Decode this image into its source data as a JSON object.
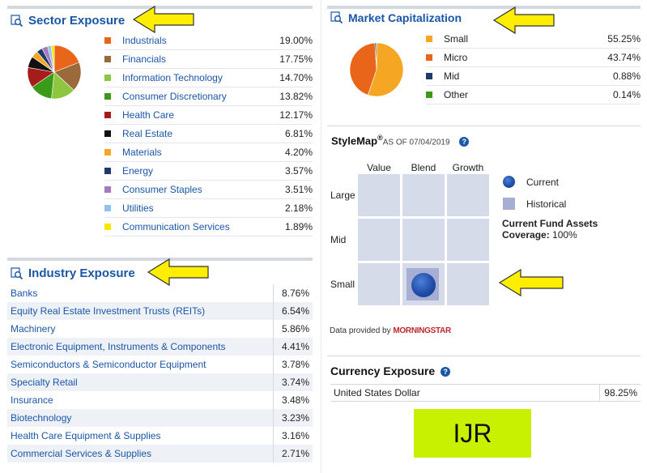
{
  "sector": {
    "title": "Sector Exposure",
    "items": [
      {
        "label": "Industrials",
        "value": "19.00%",
        "color": "#e8651a"
      },
      {
        "label": "Financials",
        "value": "17.75%",
        "color": "#9b6a3a"
      },
      {
        "label": "Information Technology",
        "value": "14.70%",
        "color": "#8dc63f"
      },
      {
        "label": "Consumer Discretionary",
        "value": "13.82%",
        "color": "#3b9a1a"
      },
      {
        "label": "Health Care",
        "value": "12.17%",
        "color": "#a61c1c"
      },
      {
        "label": "Real Estate",
        "value": "6.81%",
        "color": "#111111"
      },
      {
        "label": "Materials",
        "value": "4.20%",
        "color": "#f5a623"
      },
      {
        "label": "Energy",
        "value": "3.57%",
        "color": "#1d3a6b"
      },
      {
        "label": "Consumer Staples",
        "value": "3.51%",
        "color": "#a678c0"
      },
      {
        "label": "Utilities",
        "value": "2.18%",
        "color": "#8fc3ec"
      },
      {
        "label": "Communication Services",
        "value": "1.89%",
        "color": "#f5e700"
      }
    ]
  },
  "market_cap": {
    "title": "Market Capitalization",
    "items": [
      {
        "label": "Small",
        "value": "55.25%",
        "color": "#f5a623"
      },
      {
        "label": "Micro",
        "value": "43.74%",
        "color": "#e8651a"
      },
      {
        "label": "Mid",
        "value": "0.88%",
        "color": "#1d3a6b"
      },
      {
        "label": "Other",
        "value": "0.14%",
        "color": "#3b9a1a"
      }
    ]
  },
  "industry": {
    "title": "Industry Exposure",
    "items": [
      {
        "label": "Banks",
        "value": "8.76%"
      },
      {
        "label": "Equity Real Estate Investment Trusts (REITs)",
        "value": "6.54%"
      },
      {
        "label": "Machinery",
        "value": "5.86%"
      },
      {
        "label": "Electronic Equipment, Instruments & Components",
        "value": "4.41%"
      },
      {
        "label": "Semiconductors & Semiconductor Equipment",
        "value": "3.78%"
      },
      {
        "label": "Specialty Retail",
        "value": "3.74%"
      },
      {
        "label": "Insurance",
        "value": "3.48%"
      },
      {
        "label": "Biotechnology",
        "value": "3.23%"
      },
      {
        "label": "Health Care Equipment & Supplies",
        "value": "3.16%"
      },
      {
        "label": "Commercial Services & Supplies",
        "value": "2.71%"
      }
    ]
  },
  "stylemap": {
    "title": "StyleMap",
    "reg": "®",
    "as_of": "AS OF 07/04/2019",
    "help": "?",
    "columns": [
      "Value",
      "Blend",
      "Growth"
    ],
    "rows": [
      "Large",
      "Mid",
      "Small"
    ],
    "legend_current": "Current",
    "legend_historical": "Historical",
    "assets_title": "Current Fund Assets",
    "coverage_label": "Coverage:",
    "coverage_value": "100%",
    "current_position": {
      "row": "Small",
      "column": "Blend"
    },
    "data_provided": "Data provided by",
    "provider": "MORNINGSTAR"
  },
  "currency": {
    "title": "Currency Exposure",
    "help": "?",
    "items": [
      {
        "label": "United States Dollar",
        "value": "98.25%"
      }
    ]
  },
  "badge": {
    "text": "IJR",
    "color": "#c7f100"
  },
  "highlight_color": "#ffee00"
}
